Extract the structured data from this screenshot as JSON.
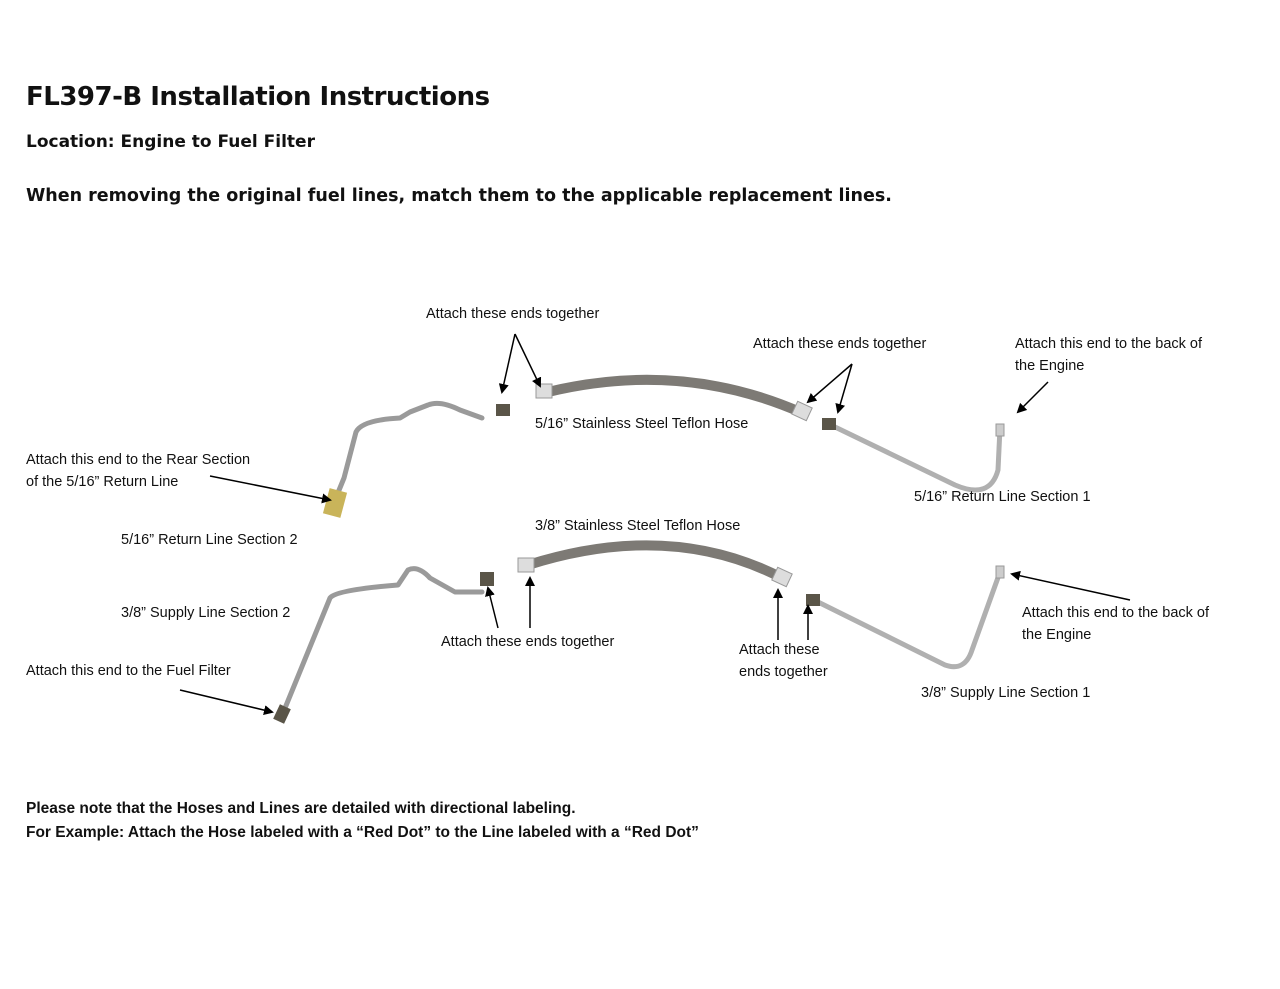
{
  "title": "FL397-B Installation Instructions",
  "location": "Location: Engine to Fuel Filter",
  "instruction": "When removing the original fuel lines, match them to the applicable replacement lines.",
  "labels": {
    "attach_top_left": "Attach these ends together",
    "attach_top_right": "Attach these ends together",
    "engine_top_1": "Attach this end to the back of",
    "engine_top_2": "the Engine",
    "rear_section_1": "Attach this end to the Rear Section",
    "rear_section_2": "of the 5/16” Return Line",
    "hose_516": "5/16” Stainless Steel Teflon Hose",
    "return_sec1": "5/16” Return Line Section 1",
    "return_sec2": "5/16” Return Line Section 2",
    "hose_38": "3/8” Stainless Steel Teflon Hose",
    "supply_sec2": "3/8” Supply Line Section 2",
    "attach_bottom_left": "Attach these ends together",
    "attach_bottom_right_1": "Attach these",
    "attach_bottom_right_2": "ends together",
    "engine_bottom_1": "Attach this end to the back of",
    "engine_bottom_2": "the Engine",
    "fuel_filter": "Attach this end to the Fuel Filter",
    "supply_sec1": "3/8” Supply Line Section 1"
  },
  "notes": [
    "Please note that the Hoses and Lines are detailed with directional labeling.",
    "For Example: Attach the Hose labeled with a “Red Dot” to the Line labeled with a “Red Dot”"
  ],
  "colors": {
    "tube": "#a8a8a8",
    "hose": "#7d7a75",
    "brass": "#c9b45a",
    "fitting": "#5a5548"
  }
}
